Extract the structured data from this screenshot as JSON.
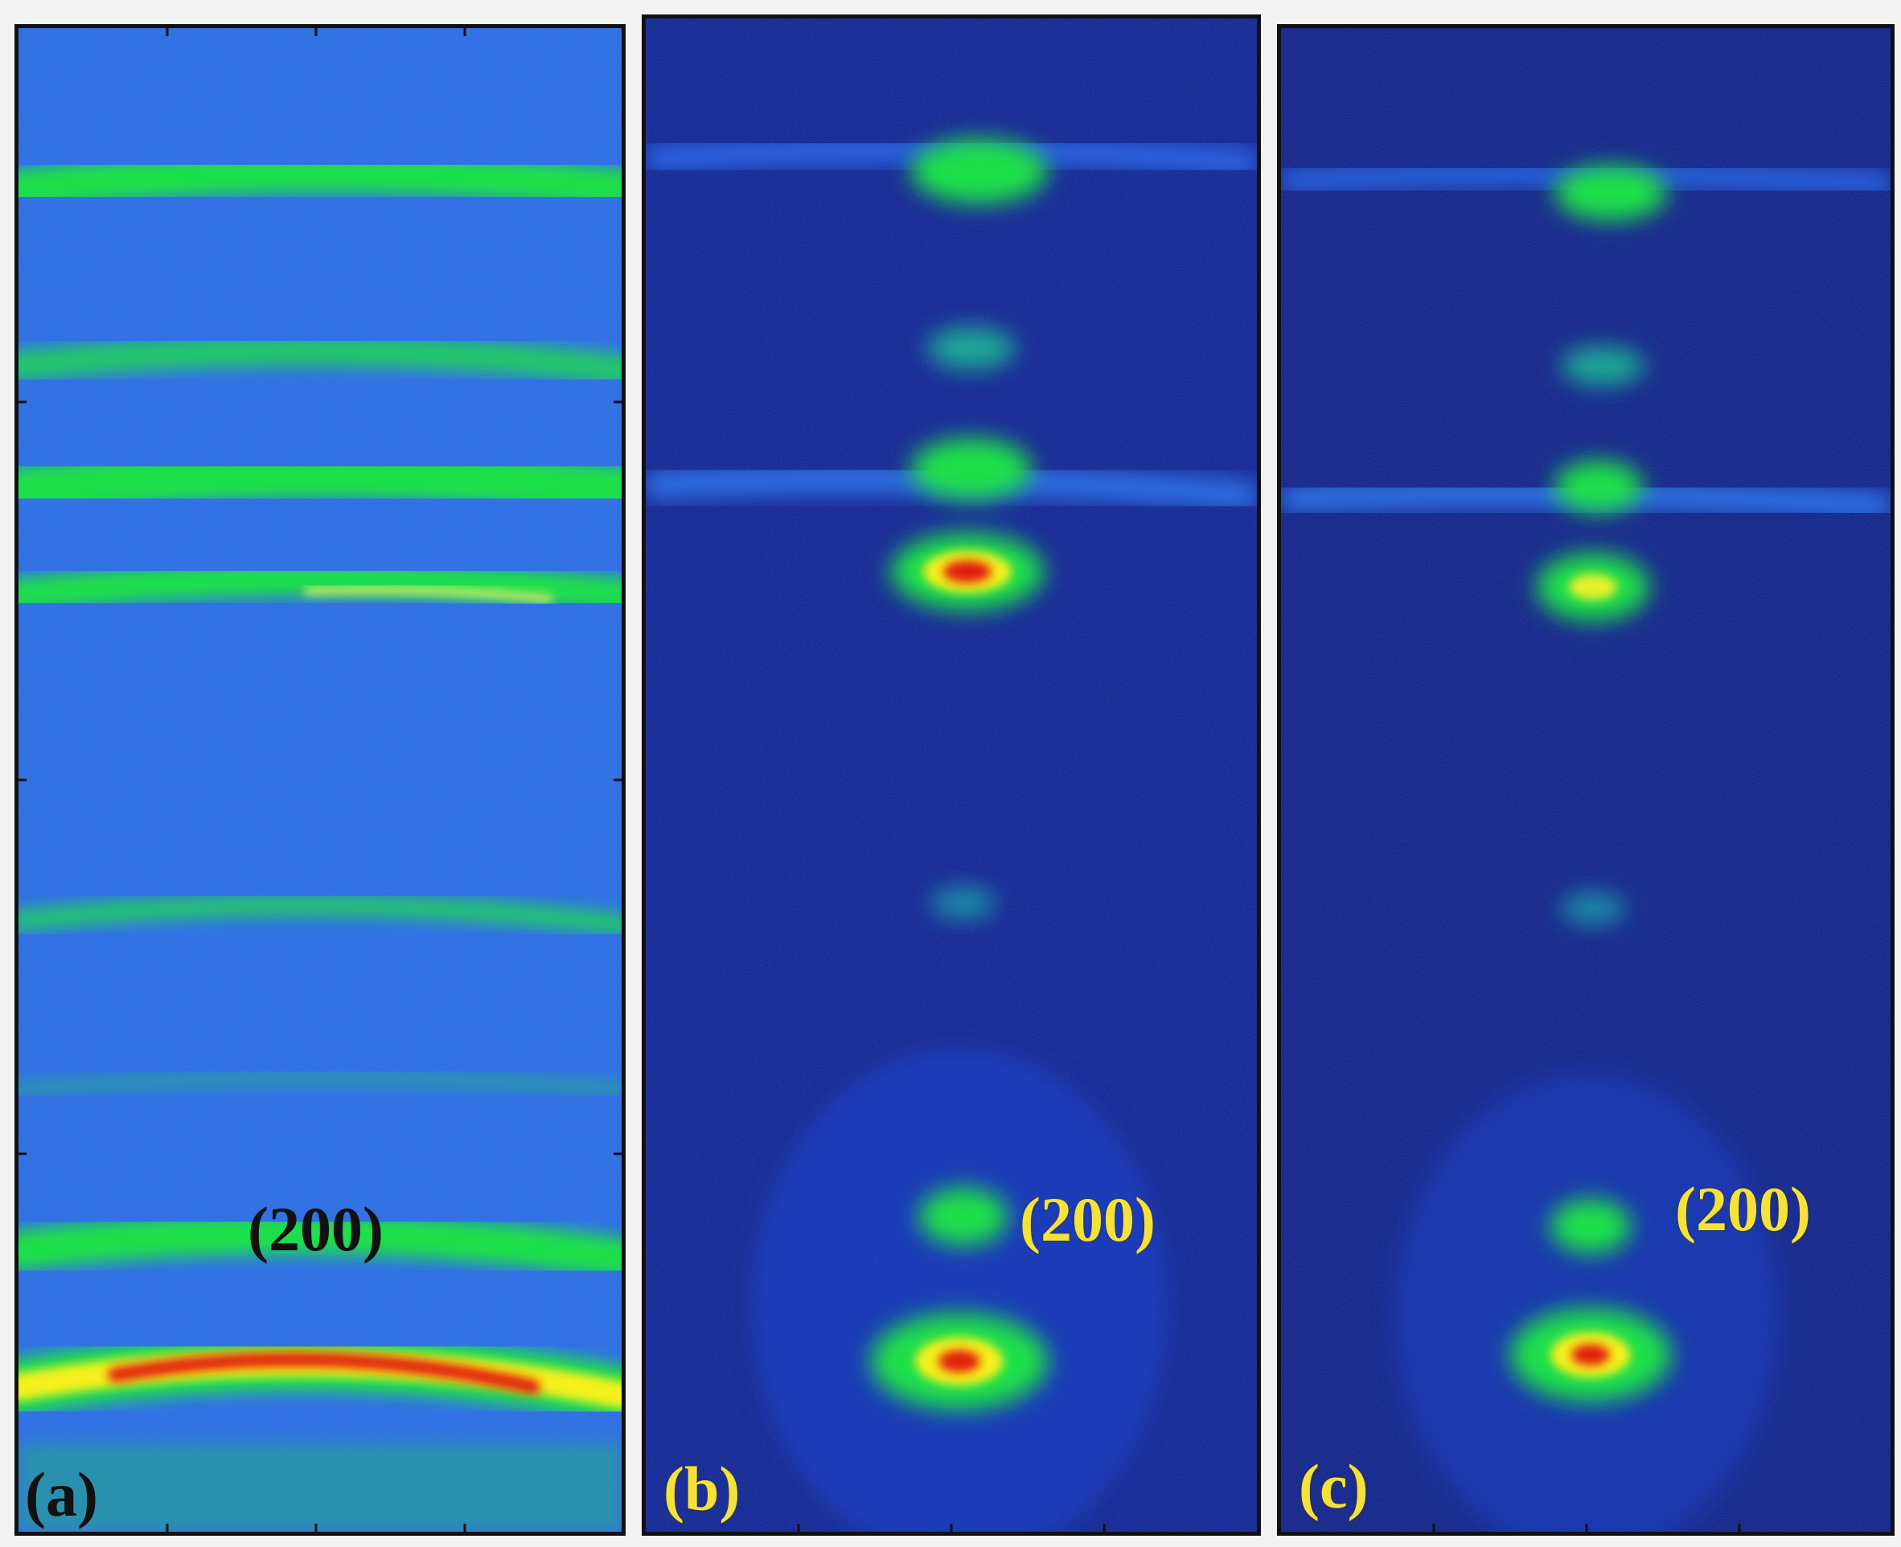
{
  "panels": [
    {
      "id": "a",
      "panel_label": "(a)",
      "peak_label": "(200)",
      "background_color": "#2a62e0",
      "label_color": "#111111"
    },
    {
      "id": "b",
      "panel_label": "(b)",
      "peak_label": "(200)",
      "background_color": "#0b1a7a",
      "label_color": "#f4e23a"
    },
    {
      "id": "c",
      "panel_label": "(c)",
      "peak_label": "(200)",
      "background_color": "#0a176e",
      "label_color": "#f4e23a"
    }
  ],
  "colors": {
    "ring_green": "#1fe04a",
    "hot_yellow": "#f6f01e",
    "hot_red": "#e21a0e",
    "frame": "#111111"
  }
}
